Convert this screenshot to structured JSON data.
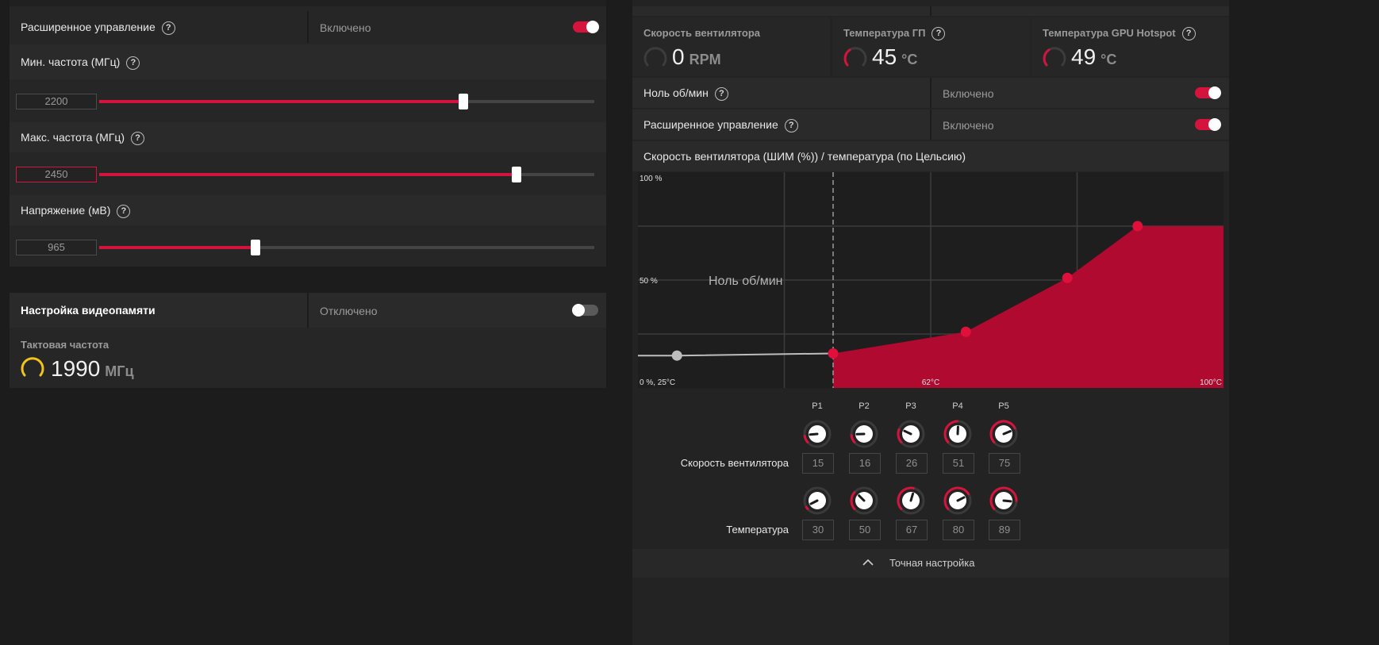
{
  "gpu_tuning": {
    "advanced_control": {
      "label": "Расширенное управление",
      "value": "Включено"
    },
    "min_freq": {
      "label": "Мин. частота (МГц)",
      "value": "2200",
      "fraction": 0.735
    },
    "max_freq": {
      "label": "Макс. частота (МГц)",
      "value": "2450",
      "fraction": 0.843
    },
    "voltage": {
      "label": "Напряжение (мВ)",
      "value": "965",
      "fraction": 0.315
    }
  },
  "vram": {
    "title": "Настройка видеопамяти",
    "status": "Отключено",
    "clock_label": "Тактовая частота",
    "clock_value": "1990",
    "clock_unit": "МГц"
  },
  "fan": {
    "stats": [
      {
        "label": "Скорость вентилятора",
        "value": "0",
        "unit": "RPM",
        "help": false
      },
      {
        "label": "Температура ГП",
        "value": "45",
        "unit": "°C",
        "help": true
      },
      {
        "label": "Температура GPU Hotspot",
        "value": "49",
        "unit": "°C",
        "help": true
      }
    ],
    "zero_rpm": {
      "label": "Ноль об/мин",
      "value": "Включено"
    },
    "advanced_control": {
      "label": "Расширенное управление",
      "value": "Включено"
    },
    "curve_title": "Скорость вентилятора (ШИМ (%)) / температура (по Цельсию)",
    "chart": {
      "y_top": "100 %",
      "y_mid": "50 %",
      "origin": "0 %, 25°C",
      "x_mid": "62°C",
      "x_max": "100°C",
      "zero_rpm_zone": "Ноль об/мин"
    },
    "points_header": [
      "P1",
      "P2",
      "P3",
      "P4",
      "P5"
    ],
    "speed_label": "Скорость вентилятора",
    "temp_label": "Температура",
    "speeds": [
      "15",
      "16",
      "26",
      "51",
      "75"
    ],
    "temps": [
      "30",
      "50",
      "67",
      "80",
      "89"
    ],
    "fine_tune": "Точная настройка"
  },
  "chart_data": {
    "type": "area",
    "title": "",
    "xlabel": "",
    "ylabel": "",
    "xlim": [
      25,
      100
    ],
    "ylim": [
      0,
      100
    ],
    "zero_rpm_threshold_temp": 50,
    "series": [
      {
        "x": [
          25,
          30,
          50
        ],
        "y": [
          15,
          15,
          16
        ]
      },
      {
        "x": [
          50,
          67,
          80,
          89,
          100
        ],
        "y": [
          16,
          26,
          51,
          75,
          75
        ]
      }
    ],
    "grid": true
  },
  "colors": {
    "accent": "#d4143c",
    "area": "#b00a30",
    "gauge_yellow": "#f0c419"
  }
}
